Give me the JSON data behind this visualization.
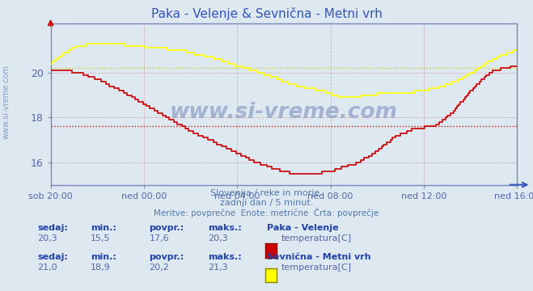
{
  "title": "Paka - Velenje & Sevnična - Metni vrh",
  "title_color": "#3355bb",
  "bg_color": "#dde8f0",
  "plot_bg_color": "#dde8f0",
  "grid_color": "#cc9999",
  "axis_color": "#7788bb",
  "xlabel_color": "#5566aa",
  "ylim": [
    15.0,
    22.2
  ],
  "yticks": [
    16,
    18,
    20
  ],
  "x_labels": [
    "sob 20:00",
    "ned 00:00",
    "ned 04:00",
    "ned 08:00",
    "ned 12:00",
    "ned 16:00"
  ],
  "x_ticks_norm": [
    0.0,
    0.2,
    0.4,
    0.6,
    0.8,
    1.0
  ],
  "avg_line1": 17.6,
  "avg_line2": 20.2,
  "avg_line1_color": "#cc0000",
  "avg_line2_color": "#cccc00",
  "line1_color": "#cc0000",
  "line2_color": "#ffff00",
  "line1_lw": 1.2,
  "line2_lw": 1.2,
  "subtitle1": "Slovenija / reke in morje.",
  "subtitle2": "zadnji dan / 5 minut.",
  "subtitle3": "Meritve: povprečne  Enote: metrične  Črta: povprečje",
  "subtitle_color": "#5577aa",
  "watermark": "www.si-vreme.com",
  "watermark_color": "#7788bb",
  "side_text": "www.si-vreme.com",
  "side_text_color": "#7788bb",
  "legend1_station": "Paka - Velenje",
  "legend1_var": "temperatura[C]",
  "legend1_sedaj": "20,3",
  "legend1_min": "15,5",
  "legend1_povpr": "17,6",
  "legend1_maks": "20,3",
  "legend2_station": "Sevnična - Metni vrh",
  "legend2_var": "temperatura[C]",
  "legend2_sedaj": "21,0",
  "legend2_min": "18,9",
  "legend2_povpr": "20,2",
  "legend2_maks": "21,3",
  "legend_color": "#5566aa",
  "legend_bold_color": "#2244aa",
  "swatch1_color": "#cc0000",
  "swatch1_border": "#880000",
  "swatch2_color": "#ffff00",
  "swatch2_border": "#888800"
}
